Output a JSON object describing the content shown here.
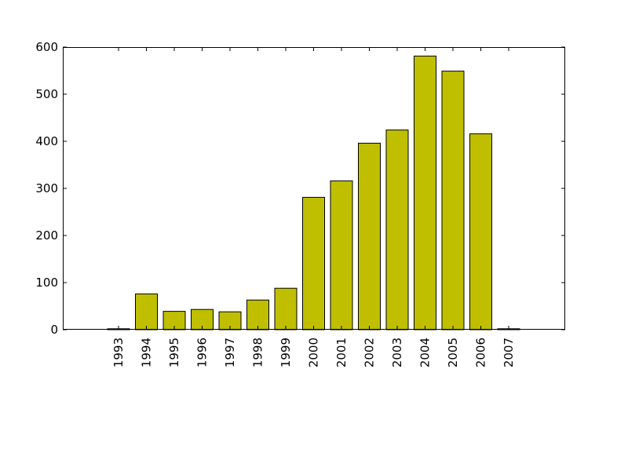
{
  "chart_data": {
    "type": "bar",
    "title": "",
    "xlabel": "",
    "ylabel": "",
    "categories": [
      "1993",
      "1994",
      "1995",
      "1996",
      "1997",
      "1998",
      "1999",
      "2000",
      "2001",
      "2002",
      "2003",
      "2004",
      "2005",
      "2006",
      "2007"
    ],
    "values": [
      2,
      76,
      39,
      43,
      38,
      63,
      88,
      281,
      316,
      396,
      424,
      581,
      549,
      416,
      2
    ],
    "ylim": [
      0,
      600
    ],
    "yticks": [
      0,
      100,
      200,
      300,
      400,
      500,
      600
    ],
    "ytick_labels": [
      "0",
      "100",
      "200",
      "300",
      "400",
      "500",
      "600"
    ],
    "grid": false,
    "legend": "none",
    "bar_color": "#bfbf00",
    "edge_color": "#000000"
  }
}
